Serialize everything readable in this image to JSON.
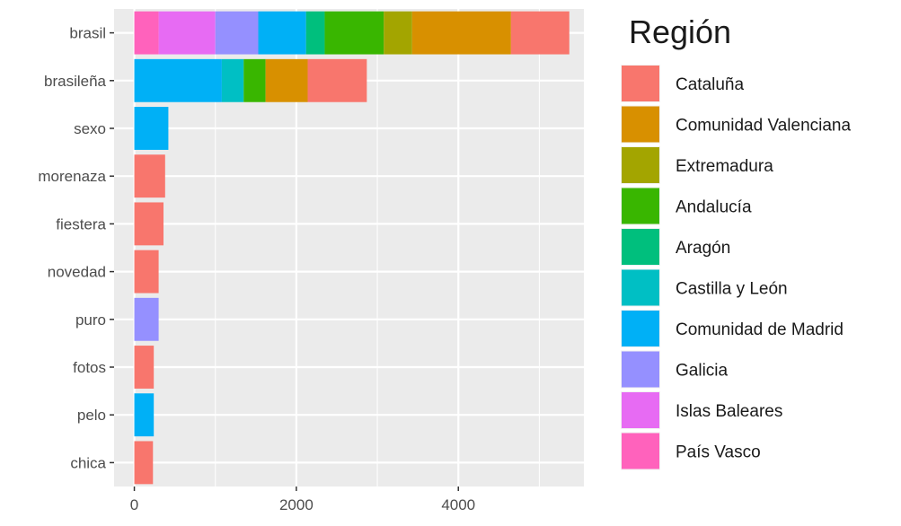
{
  "chart_data": {
    "type": "bar",
    "orientation": "horizontal",
    "stacked": true,
    "legend": {
      "title": "Región",
      "position": "right",
      "entries": [
        {
          "name": "Cataluña",
          "color": "#F8766D"
        },
        {
          "name": "Comunidad Valenciana",
          "color": "#D89000"
        },
        {
          "name": "Extremadura",
          "color": "#A3A500"
        },
        {
          "name": "Andalucía",
          "color": "#39B600"
        },
        {
          "name": "Aragón",
          "color": "#00BF7D"
        },
        {
          "name": "Castilla y León",
          "color": "#00BFC4"
        },
        {
          "name": "Comunidad de Madrid",
          "color": "#00B0F6"
        },
        {
          "name": "Galicia",
          "color": "#9590FF"
        },
        {
          "name": "Islas Baleares",
          "color": "#E76BF3"
        },
        {
          "name": "País Vasco",
          "color": "#FF62BC"
        }
      ]
    },
    "categories": [
      "brasil",
      "brasileña",
      "sexo",
      "morenaza",
      "fiestera",
      "novedad",
      "puro",
      "fotos",
      "pelo",
      "chica"
    ],
    "series": [
      {
        "name": "Cataluña",
        "values": [
          720,
          730,
          0,
          380,
          360,
          300,
          0,
          240,
          0,
          230
        ]
      },
      {
        "name": "Comunidad Valenciana",
        "values": [
          1220,
          520,
          0,
          0,
          0,
          0,
          0,
          0,
          0,
          0
        ]
      },
      {
        "name": "Extremadura",
        "values": [
          350,
          0,
          0,
          0,
          0,
          0,
          0,
          0,
          0,
          0
        ]
      },
      {
        "name": "Andalucía",
        "values": [
          730,
          270,
          0,
          0,
          0,
          0,
          0,
          0,
          0,
          0
        ]
      },
      {
        "name": "Aragón",
        "values": [
          230,
          0,
          0,
          0,
          0,
          0,
          0,
          0,
          0,
          0
        ]
      },
      {
        "name": "Castilla y León",
        "values": [
          0,
          270,
          0,
          0,
          0,
          0,
          0,
          0,
          0,
          0
        ]
      },
      {
        "name": "Comunidad de Madrid",
        "values": [
          590,
          1080,
          420,
          0,
          0,
          0,
          0,
          0,
          240,
          0
        ]
      },
      {
        "name": "Galicia",
        "values": [
          530,
          0,
          0,
          0,
          0,
          0,
          300,
          0,
          0,
          0
        ]
      },
      {
        "name": "Islas Baleares",
        "values": [
          700,
          0,
          0,
          0,
          0,
          0,
          0,
          0,
          0,
          0
        ]
      },
      {
        "name": "País Vasco",
        "values": [
          300,
          0,
          0,
          0,
          0,
          0,
          0,
          0,
          0,
          0
        ]
      }
    ],
    "xlim": [
      -250,
      5550
    ],
    "xticks": [
      0,
      2000,
      4000
    ],
    "xtick_labels": [
      "0",
      "2000",
      "4000"
    ],
    "title": "",
    "xlabel": "",
    "ylabel": "",
    "grid": true,
    "panel_background": "#EBEBEB",
    "grid_color": "#FFFFFF"
  }
}
